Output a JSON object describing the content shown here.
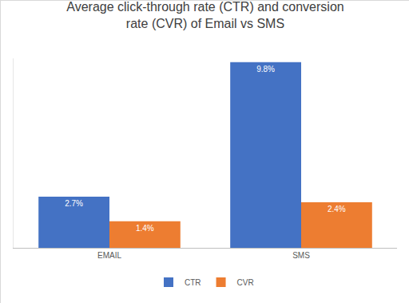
{
  "chart_data": {
    "type": "bar",
    "title": "Average click-through rate (CTR) and conversion rate (CVR) of Email vs SMS",
    "categories": [
      "EMAIL",
      "SMS"
    ],
    "series": [
      {
        "name": "CTR",
        "color": "#4472c4",
        "values": [
          2.7,
          9.8
        ],
        "value_labels": [
          "2.7%",
          "9.8%"
        ]
      },
      {
        "name": "CVR",
        "color": "#ed7d31",
        "values": [
          1.4,
          2.4
        ],
        "value_labels": [
          "1.4%",
          "2.4%"
        ]
      }
    ],
    "ylim": [
      0,
      10
    ],
    "tick_labels": "x",
    "data_labels": true,
    "legend": "bottom",
    "grid": false
  }
}
